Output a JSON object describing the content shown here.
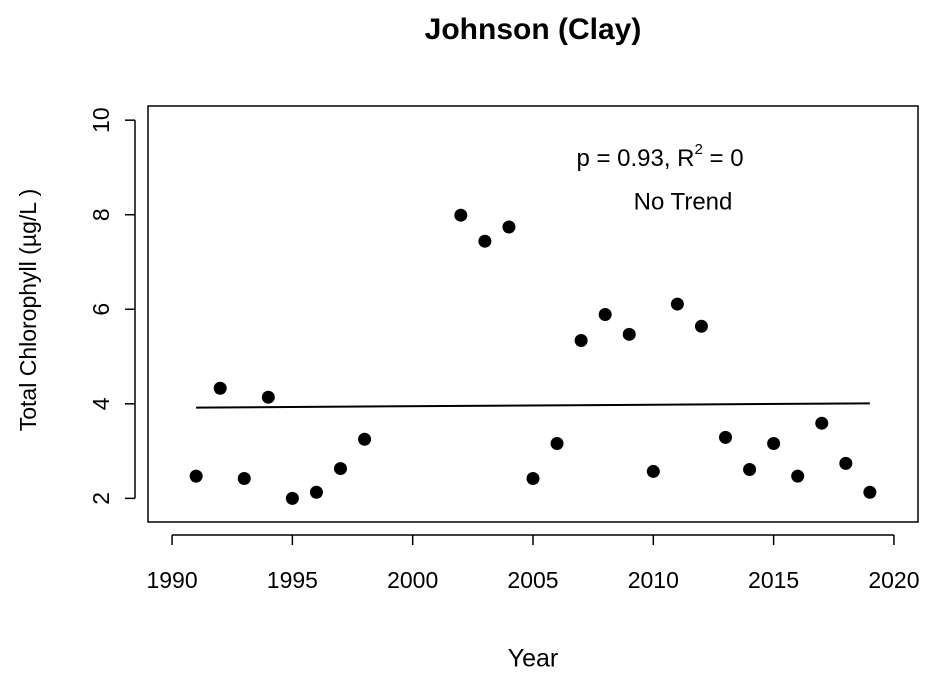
{
  "chart_data": {
    "type": "scatter",
    "title": "Johnson (Clay)",
    "xlabel": "Year",
    "ylabel": "Total Chlorophyll (µg/L )",
    "annotation": {
      "text_before": "p = 0.93, R",
      "superscript": "2",
      "text_after": " = 0",
      "trend": "No Trend"
    },
    "xlim": [
      1989,
      2021
    ],
    "ylim": [
      1.5,
      10.3
    ],
    "xticks": [
      1990,
      1995,
      2000,
      2005,
      2010,
      2015,
      2020
    ],
    "yticks": [
      2,
      4,
      6,
      8,
      10
    ],
    "color": "#000000",
    "x": [
      1991,
      1992,
      1993,
      1994,
      1995,
      1996,
      1997,
      1998,
      2002,
      2003,
      2004,
      2005,
      2006,
      2007,
      2008,
      2009,
      2010,
      2011,
      2012,
      2013,
      2014,
      2015,
      2016,
      2017,
      2018,
      2019
    ],
    "values": [
      2.47,
      4.33,
      2.42,
      4.14,
      2.0,
      2.13,
      2.63,
      3.25,
      7.99,
      7.44,
      7.74,
      2.42,
      3.16,
      5.34,
      5.89,
      5.47,
      2.57,
      6.11,
      5.64,
      3.29,
      2.61,
      3.16,
      2.47,
      3.59,
      2.74,
      2.13
    ],
    "trend_line": {
      "x": [
        1991,
        2019
      ],
      "values": [
        3.92,
        4.01
      ]
    }
  }
}
